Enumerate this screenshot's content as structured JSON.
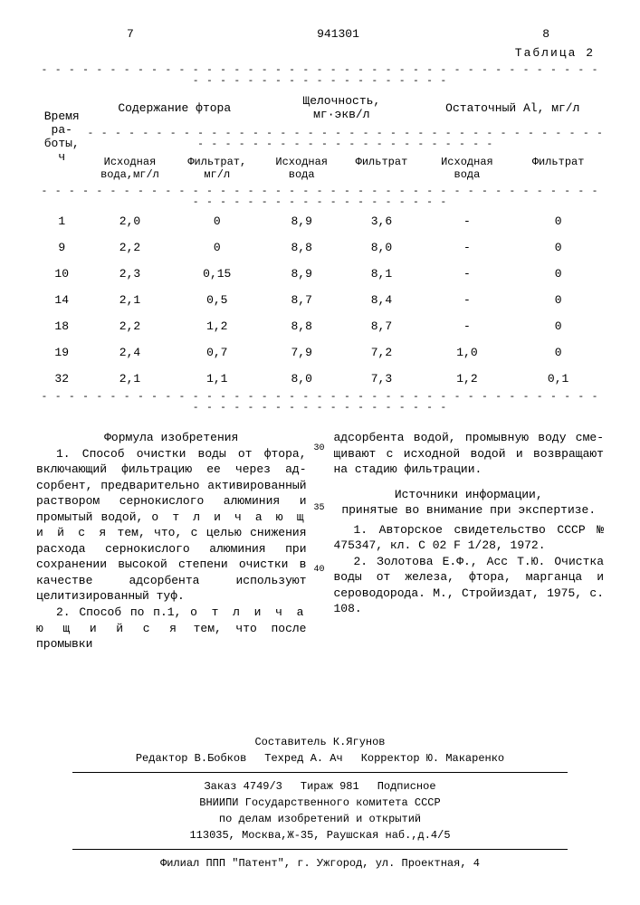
{
  "header": {
    "page_left": "7",
    "doc_number": "941301",
    "page_right": "8",
    "table_label": "Таблица 2"
  },
  "table": {
    "headers_top": {
      "col1": "Время ра-\nботы, ч",
      "col2": "Содержание фтора",
      "col3": "Щелочность,\nмг·экв/л",
      "col4": "Остаточный Al, мг/л"
    },
    "headers_sub": {
      "c2a": "Исходная\nвода,мг/л",
      "c2b": "Фильтрат,\nмг/л",
      "c3a": "Исходная\nвода",
      "c3b": "Фильтрат",
      "c4a": "Исходная\nвода",
      "c4b": "Фильтрат"
    },
    "rows": [
      [
        "1",
        "2,0",
        "0",
        "8,9",
        "3,6",
        "-",
        "0"
      ],
      [
        "9",
        "2,2",
        "0",
        "8,8",
        "8,0",
        "-",
        "0"
      ],
      [
        "10",
        "2,3",
        "0,15",
        "8,9",
        "8,1",
        "-",
        "0"
      ],
      [
        "14",
        "2,1",
        "0,5",
        "8,7",
        "8,4",
        "-",
        "0"
      ],
      [
        "18",
        "2,2",
        "1,2",
        "8,8",
        "8,7",
        "-",
        "0"
      ],
      [
        "19",
        "2,4",
        "0,7",
        "7,9",
        "7,2",
        "1,0",
        "0"
      ],
      [
        "32",
        "2,1",
        "1,1",
        "8,0",
        "7,3",
        "1,2",
        "0,1"
      ]
    ]
  },
  "claims": {
    "heading": "Формула изобретения",
    "c1p1": "1. Способ очистки воды от фтора, включающий фильтрацию ее через ад­сорбент, предварительно активирован­ный раствором сернокислого алюминия и промытый водой, ",
    "c1p2": "о т л и ч а ю ­щ и й с я",
    "c1p3": " тем, что, с целью снижения расхода сернокислого алюминия при сохранении высокой степени очистки в качестве адсорбента используют целитизированный туф.",
    "c2p1": "2. Способ по п.1, ",
    "c2p2": "о т л и ч а ­ю щ и й с я",
    "c2p3": " тем, что после промывки",
    "right_top": "адсорбента водой, промывную воду сме­щивают с исходной водой и возвращают на стадию фильтрации.",
    "sources_heading": "Источники информации,\nпринятые во внимание при экспертизе.",
    "src1": "1. Авторское свидетельство СССР № 475347, кл. С 02 F 1/28, 1972.",
    "src2": "2. Золотова Е.Ф., Асс Т.Ю. Очист­ка воды от железа, фтора, марганца и сероводорода. М., Стройиздат, 1975, с. 108."
  },
  "line_numbers": {
    "n30": "30",
    "n35": "35",
    "n40": "40"
  },
  "footer": {
    "compiler": "Составитель К.Ягунов",
    "editor": "Редактор В.Бобков",
    "techred": "Техред А. Ач",
    "corrector": "Корректор Ю. Макаренко",
    "order": "Заказ 4749/3",
    "tirazh": "Тираж 981",
    "subscript": "Подписное",
    "org1": "ВНИИПИ Государственного комитета СССР",
    "org2": "по делам изобретений и открытий",
    "addr": "113035, Москва,Ж-35, Раушская наб.,д.4/5",
    "branch": "Филиал ППП \"Патент\", г. Ужгород, ул. Проектная, 4"
  },
  "dash_line": "- - - - - - - - - - - - - - - - - - - - - - - - - - - - - - - - - - - - - - - - - - - - - - - - - - - - - - - - - - - -"
}
